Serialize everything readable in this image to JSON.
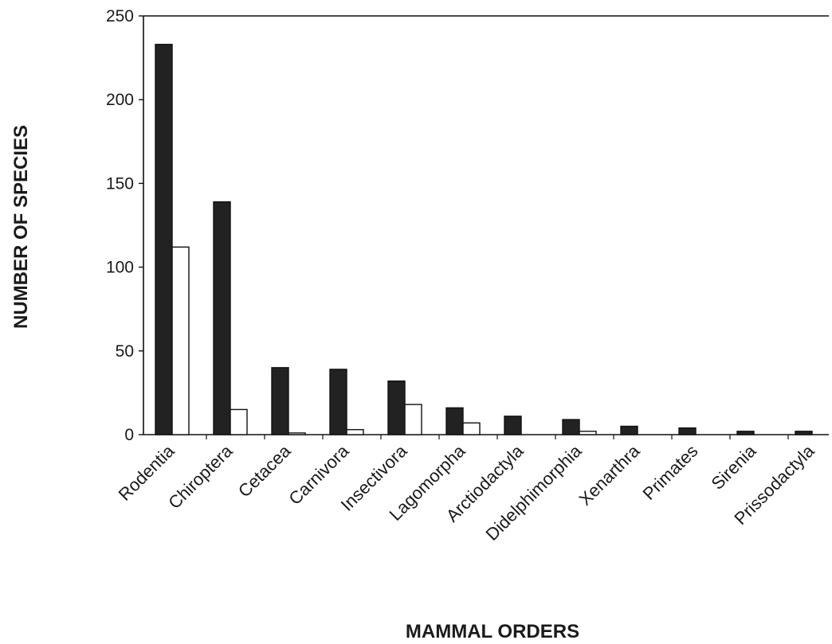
{
  "chart_data": {
    "type": "bar",
    "title": "",
    "xlabel": "MAMMAL ORDERS",
    "ylabel": "NUMBER OF SPECIES",
    "ylim": [
      0,
      250
    ],
    "yticks": [
      0,
      50,
      100,
      150,
      200,
      250
    ],
    "grid": false,
    "legend": "none",
    "categories": [
      "Rodentia",
      "Chiroptera",
      "Cetacea",
      "Carnivora",
      "Insectivora",
      "Lagomorpha",
      "Arctiodactyla",
      "Didelphimorphia",
      "Xenarthra",
      "Primates",
      "Sirenia",
      "Prissodactyla"
    ],
    "series": [
      {
        "values": [
          233,
          139,
          40,
          39,
          32,
          16,
          11,
          9,
          5,
          4,
          2,
          2
        ],
        "color": "#222222"
      },
      {
        "values": [
          112,
          15,
          1,
          3,
          18,
          7,
          0,
          2,
          0,
          0,
          0,
          0
        ],
        "color": "#ffffff"
      }
    ]
  }
}
